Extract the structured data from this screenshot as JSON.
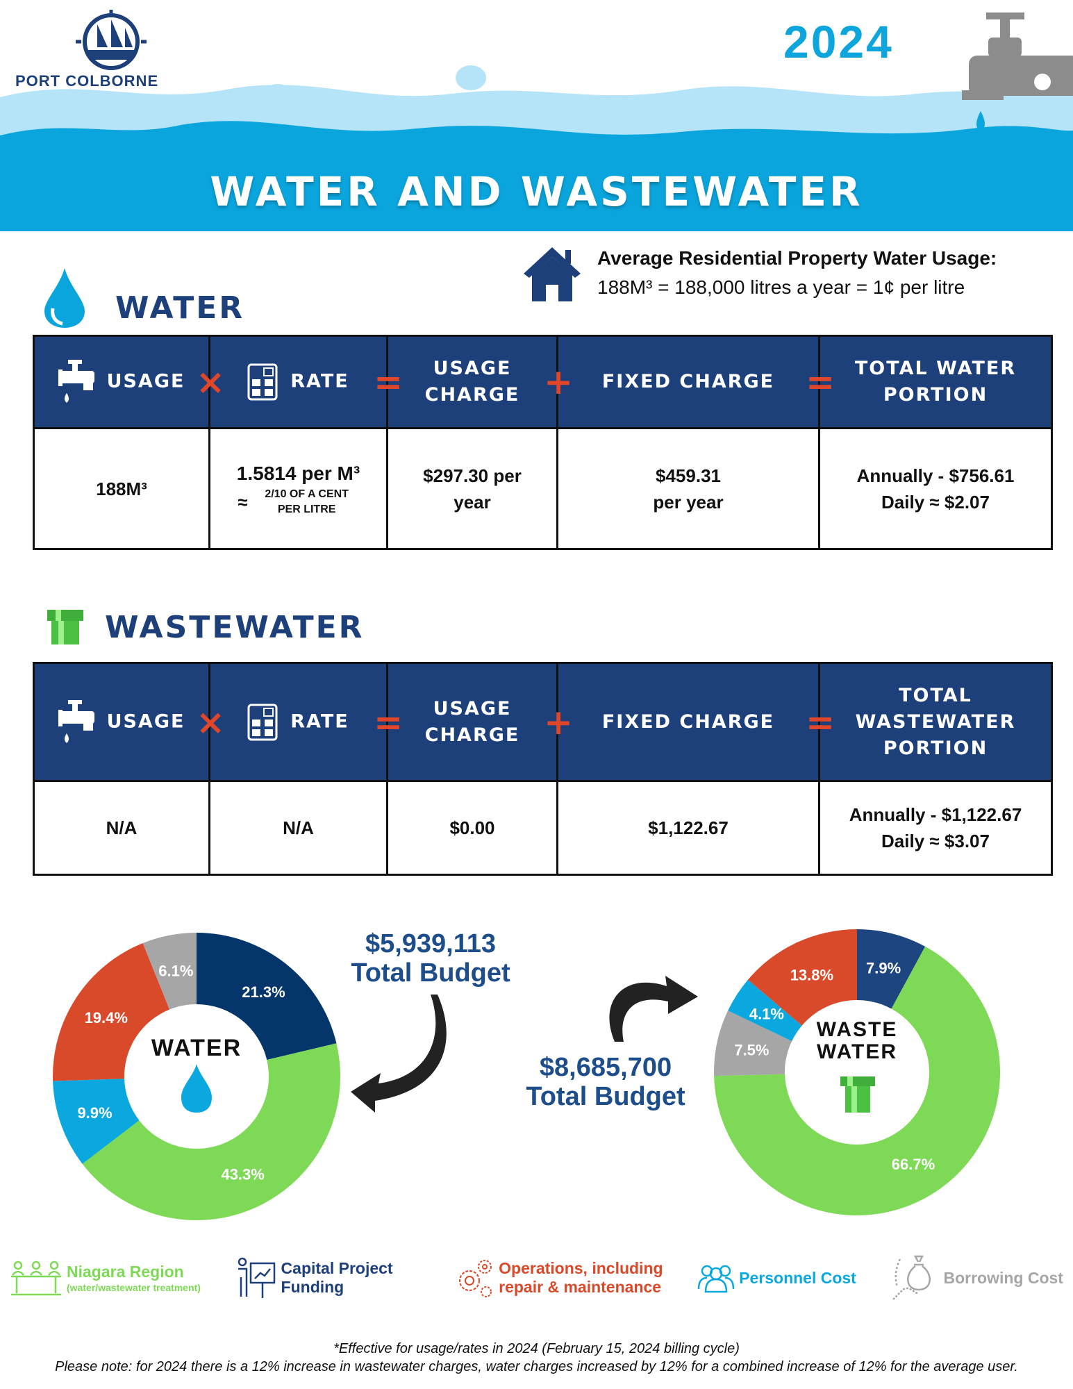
{
  "header": {
    "org_name": "PORT COLBORNE",
    "year": "2024",
    "title": "WATER AND WASTEWATER"
  },
  "average_usage": {
    "heading": "Average Residential Property Water Usage:",
    "detail": "188M³ = 188,000 litres a year = 1¢ per litre"
  },
  "water": {
    "title": "WATER",
    "headers": [
      "USAGE",
      "RATE",
      "USAGE CHARGE",
      "FIXED CHARGE",
      "TOTAL WATER PORTION"
    ],
    "usage": "188M³",
    "rate": "1.5814 per M³",
    "rate_note": "2/10 OF A CENT PER LITRE",
    "usage_charge": "$297.30 per year",
    "fixed_charge_1": "$459.31",
    "fixed_charge_2": "per year",
    "total_annual": "Annually - $756.61",
    "total_daily_label": "Daily",
    "total_daily_value": "$2.07"
  },
  "wastewater": {
    "title": "WASTEWATER",
    "headers": [
      "USAGE",
      "RATE",
      "USAGE CHARGE",
      "FIXED CHARGE",
      "TOTAL WASTEWATER PORTION"
    ],
    "usage": "N/A",
    "rate": "N/A",
    "usage_charge": "$0.00",
    "fixed_charge": "$1,122.67",
    "total_annual": "Annually - $1,122.67",
    "total_daily_label": "Daily",
    "total_daily_value": "$3.07"
  },
  "operators": {
    "times": "×",
    "equals": "=",
    "plus": "+",
    "approx": "≈"
  },
  "colors": {
    "navy": "#1d3f7a",
    "capital": "#04356b",
    "niagara": "#7ed957",
    "personnel": "#0aa8df",
    "operations": "#d94a2b",
    "borrowing": "#a6a6a6"
  },
  "chart_data": [
    {
      "type": "pie",
      "center_label": "WATER",
      "total_label": "$5,939,113",
      "total_caption": "Total Budget",
      "slices": [
        {
          "category": "Capital Project Funding",
          "value": 21.3,
          "label": "21.3%",
          "color": "#04356b"
        },
        {
          "category": "Niagara Region",
          "value": 43.3,
          "label": "43.3%",
          "color": "#7ed957"
        },
        {
          "category": "Personnel Cost",
          "value": 9.9,
          "label": "9.9%",
          "color": "#0aa8df"
        },
        {
          "category": "Operations, including repair & maintenance",
          "value": 19.4,
          "label": "19.4%",
          "color": "#d94a2b"
        },
        {
          "category": "Borrowing Cost",
          "value": 6.1,
          "label": "6.1%",
          "color": "#a6a6a6"
        }
      ]
    },
    {
      "type": "pie",
      "center_label": [
        "WASTE",
        "WATER"
      ],
      "total_label": "$8,685,700",
      "total_caption": "Total Budget",
      "slices": [
        {
          "category": "Capital Project Funding",
          "value": 7.9,
          "label": "7.9%",
          "color": "#1d4580"
        },
        {
          "category": "Niagara Region",
          "value": 66.7,
          "label": "66.7%",
          "color": "#7ed957"
        },
        {
          "category": "Borrowing Cost",
          "value": 7.5,
          "label": "7.5%",
          "color": "#a6a6a6"
        },
        {
          "category": "Personnel Cost",
          "value": 4.1,
          "label": "4.1%",
          "color": "#0aa8df"
        },
        {
          "category": "Operations, including repair & maintenance",
          "value": 13.8,
          "label": "13.8%",
          "color": "#d94a2b"
        }
      ]
    }
  ],
  "legend": [
    {
      "label": "Niagara Region",
      "sub": "(water/wastewater treatment)",
      "color": "#7ed957"
    },
    {
      "label": "Capital Project Funding",
      "color": "#1d3f7a"
    },
    {
      "label": "Operations, including",
      "label2": "repair & maintenance",
      "color": "#d94a2b"
    },
    {
      "label": "Personnel Cost",
      "color": "#0aa8df"
    },
    {
      "label": "Borrowing Cost",
      "color": "#a6a6a6"
    }
  ],
  "footer": {
    "line1": "*Effective for usage/rates in 2024 (February 15, 2024 billing cycle)",
    "line2": "Please note: for 2024 there is a 12% increase in wastewater charges, water charges increased by 12% for a combined increase of 12% for the average user."
  }
}
